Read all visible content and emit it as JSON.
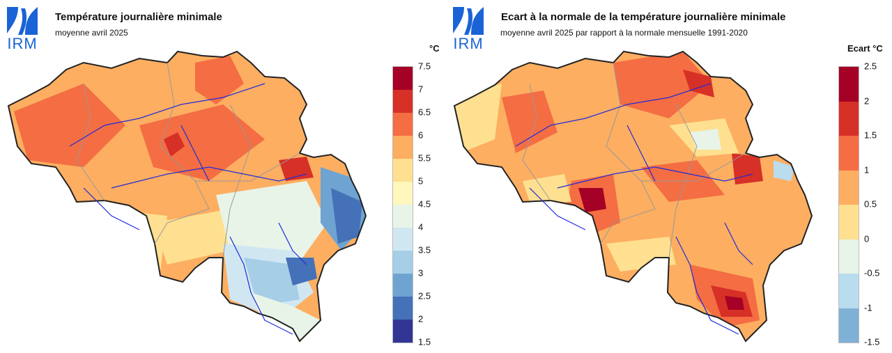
{
  "logo": {
    "text": "IRM",
    "color": "#1a63d6"
  },
  "left_map": {
    "title": "Température journalière minimale",
    "subtitle": "moyenne avril 2025",
    "unit": "°C",
    "legend": {
      "ticks": [
        "7.5",
        "7",
        "6.5",
        "6",
        "5.5",
        "5",
        "4.5",
        "4",
        "3.5",
        "3",
        "2.5",
        "2",
        "1.5"
      ],
      "colors": [
        "#a50026",
        "#d73027",
        "#f46d43",
        "#fdae61",
        "#fee090",
        "#fff7bc",
        "#e8f4e8",
        "#d0e7f2",
        "#a6cee6",
        "#6fa4d2",
        "#4471b8",
        "#313695"
      ]
    }
  },
  "right_map": {
    "title": "Ecart à la normale de la température journalière minimale",
    "subtitle": "moyenne avril 2025 par rapport à la normale mensuelle 1991-2020",
    "unit": "Ecart °C",
    "legend": {
      "ticks": [
        "2.5",
        "2",
        "1.5",
        "1",
        "0.5",
        "0",
        "-0.5",
        "-1",
        "-1.5"
      ],
      "colors": [
        "#a50026",
        "#d73027",
        "#f46d43",
        "#fdae61",
        "#fee090",
        "#e8f4e8",
        "#b9dcee",
        "#7fb1d6"
      ]
    }
  }
}
